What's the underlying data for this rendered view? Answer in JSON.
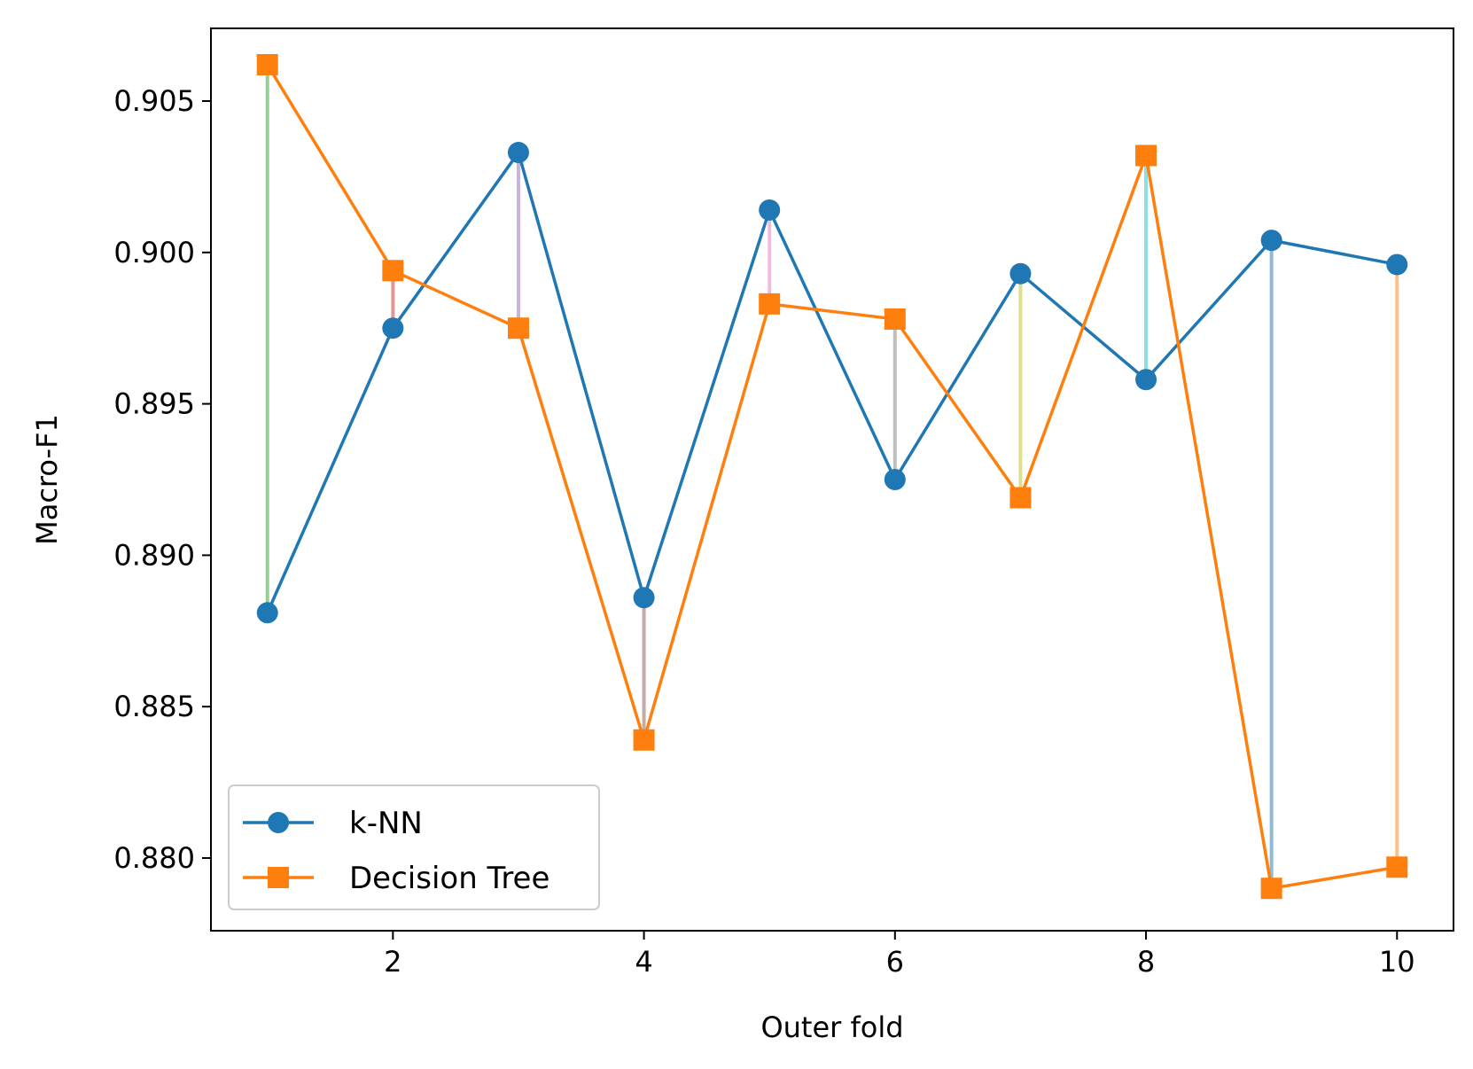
{
  "chart_data": {
    "type": "line",
    "title": "",
    "xlabel": "Outer fold",
    "ylabel": "Macro-F1",
    "xlim": [
      0.55,
      10.45
    ],
    "ylim": [
      0.8776,
      0.9074
    ],
    "xticks": [
      2,
      4,
      6,
      8,
      10
    ],
    "xtick_labels": [
      "2",
      "4",
      "6",
      "8",
      "10"
    ],
    "yticks": [
      0.88,
      0.885,
      0.89,
      0.895,
      0.9,
      0.905
    ],
    "ytick_labels": [
      "0.880",
      "0.885",
      "0.890",
      "0.895",
      "0.900",
      "0.905"
    ],
    "grid": false,
    "legend_position": "lower-left",
    "x": [
      1,
      2,
      3,
      4,
      5,
      6,
      7,
      8,
      9,
      10
    ],
    "series": [
      {
        "name": "k-NN",
        "color": "#1f77b4",
        "marker": "circle",
        "values": [
          0.8881,
          0.8975,
          0.9033,
          0.8886,
          0.9014,
          0.8925,
          0.8993,
          0.8958,
          0.9004,
          0.8996
        ]
      },
      {
        "name": "Decision Tree",
        "color": "#ff7f0e",
        "marker": "square",
        "values": [
          0.9062,
          0.8994,
          0.8975,
          0.8839,
          0.8983,
          0.8978,
          0.8919,
          0.9032,
          0.879,
          0.8797
        ]
      }
    ],
    "difference_connectors": {
      "colors": [
        "#2ca02c",
        "#d62728",
        "#9467bd",
        "#8c564b",
        "#e377c2",
        "#7f7f7f",
        "#bcbd22",
        "#17becf",
        "#1f77b4",
        "#ff7f0e"
      ]
    }
  }
}
